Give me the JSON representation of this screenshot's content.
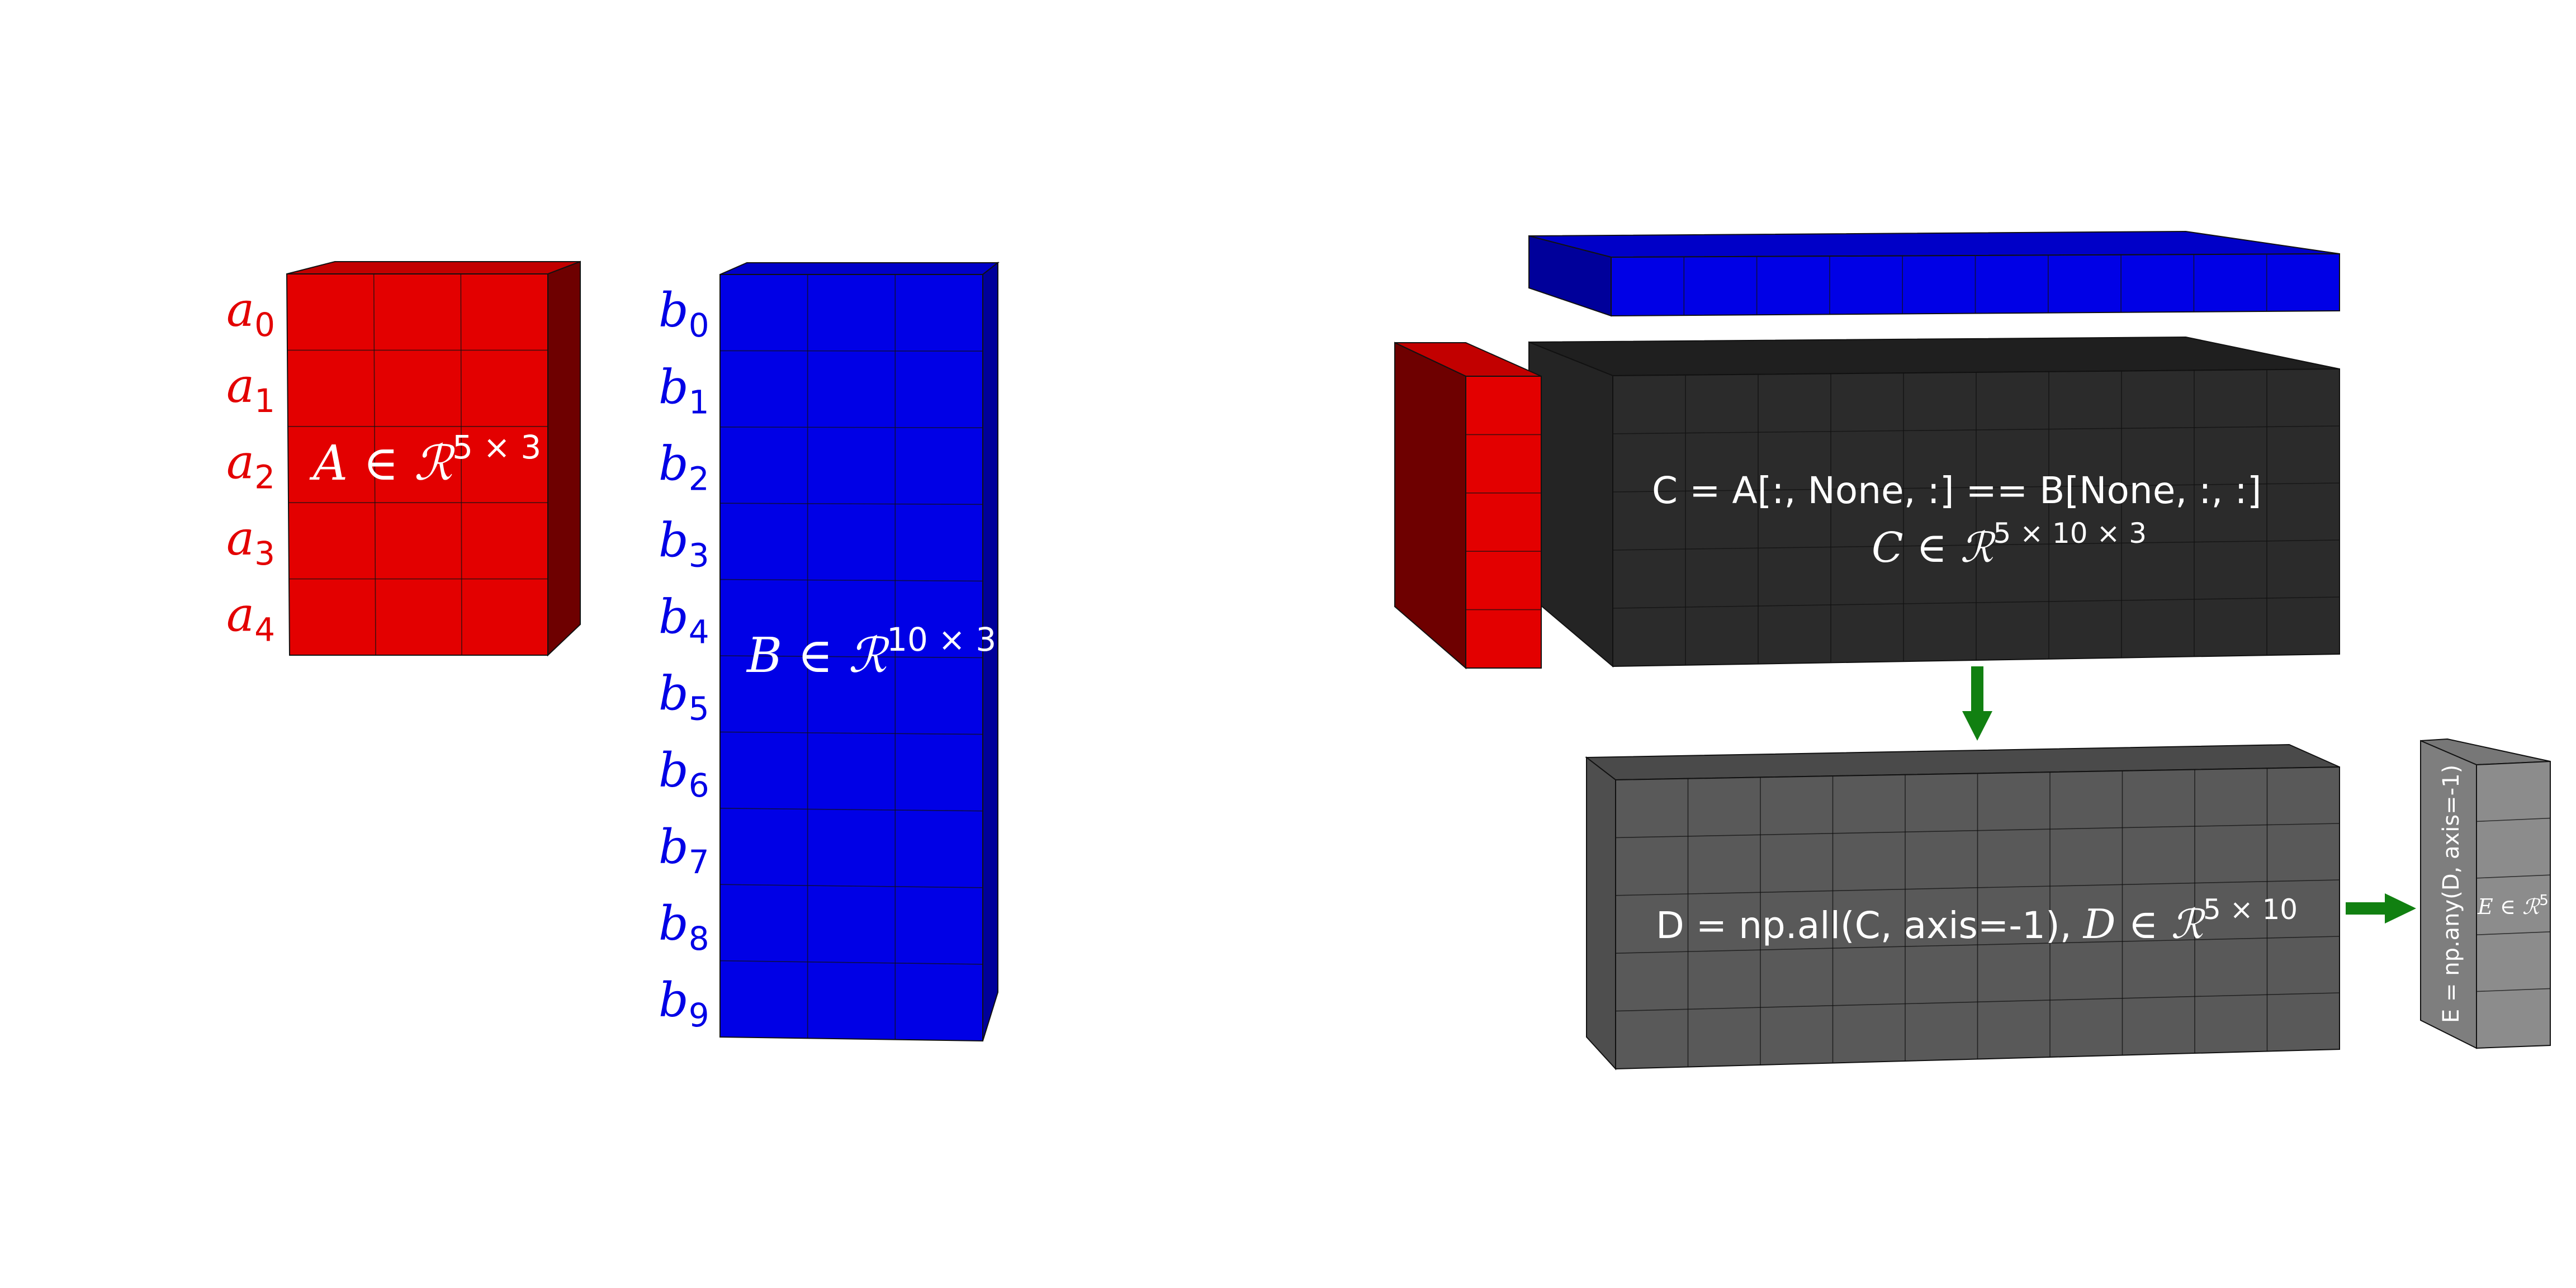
{
  "colors": {
    "red": "#e30000",
    "red_top": "#c20000",
    "red_side": "#6e0000",
    "blue": "#0000e6",
    "blue_top": "#0000c8",
    "blue_side": "#00009a",
    "dark": "#2b2b2b",
    "dark_top": "#1f1f1f",
    "dark_side": "#242424",
    "gray": "#595959",
    "gray_top": "#4a4a4a",
    "gray_side": "#4e4e4e",
    "lightgray": "#8c8c8c",
    "lightgray_top": "#777777",
    "lightgray_side": "#7e7e7e",
    "arrow": "#118011",
    "label_red": "#e30000",
    "label_blue": "#0000e6",
    "text_light": "#ffffff"
  },
  "matrix_a": {
    "name": "A",
    "shape_label": "A ∈ ℛ",
    "shape_sup": "5 × 3",
    "row_labels": [
      {
        "base": "a",
        "sub": "0"
      },
      {
        "base": "a",
        "sub": "1"
      },
      {
        "base": "a",
        "sub": "2"
      },
      {
        "base": "a",
        "sub": "3"
      },
      {
        "base": "a",
        "sub": "4"
      }
    ]
  },
  "matrix_b": {
    "name": "B",
    "shape_label": "B ∈ ℛ",
    "shape_sup": "10 × 3",
    "row_labels": [
      {
        "base": "b",
        "sub": "0"
      },
      {
        "base": "b",
        "sub": "1"
      },
      {
        "base": "b",
        "sub": "2"
      },
      {
        "base": "b",
        "sub": "3"
      },
      {
        "base": "b",
        "sub": "4"
      },
      {
        "base": "b",
        "sub": "5"
      },
      {
        "base": "b",
        "sub": "6"
      },
      {
        "base": "b",
        "sub": "7"
      },
      {
        "base": "b",
        "sub": "8"
      },
      {
        "base": "b",
        "sub": "9"
      }
    ]
  },
  "tensor_c": {
    "code": "C = A[:, None, :] == B[None, :, :]",
    "shape_label": "C ∈ ℛ",
    "shape_sup": "5 × 10 × 3"
  },
  "tensor_d": {
    "code": "D = np.all(C, axis=-1), ",
    "shape_label": "D ∈ ℛ",
    "shape_sup": "5 × 10"
  },
  "tensor_e": {
    "code": "E = np.any(D, axis=-1)",
    "shape_label": "E ∈ ℛ",
    "shape_sup": "5"
  }
}
